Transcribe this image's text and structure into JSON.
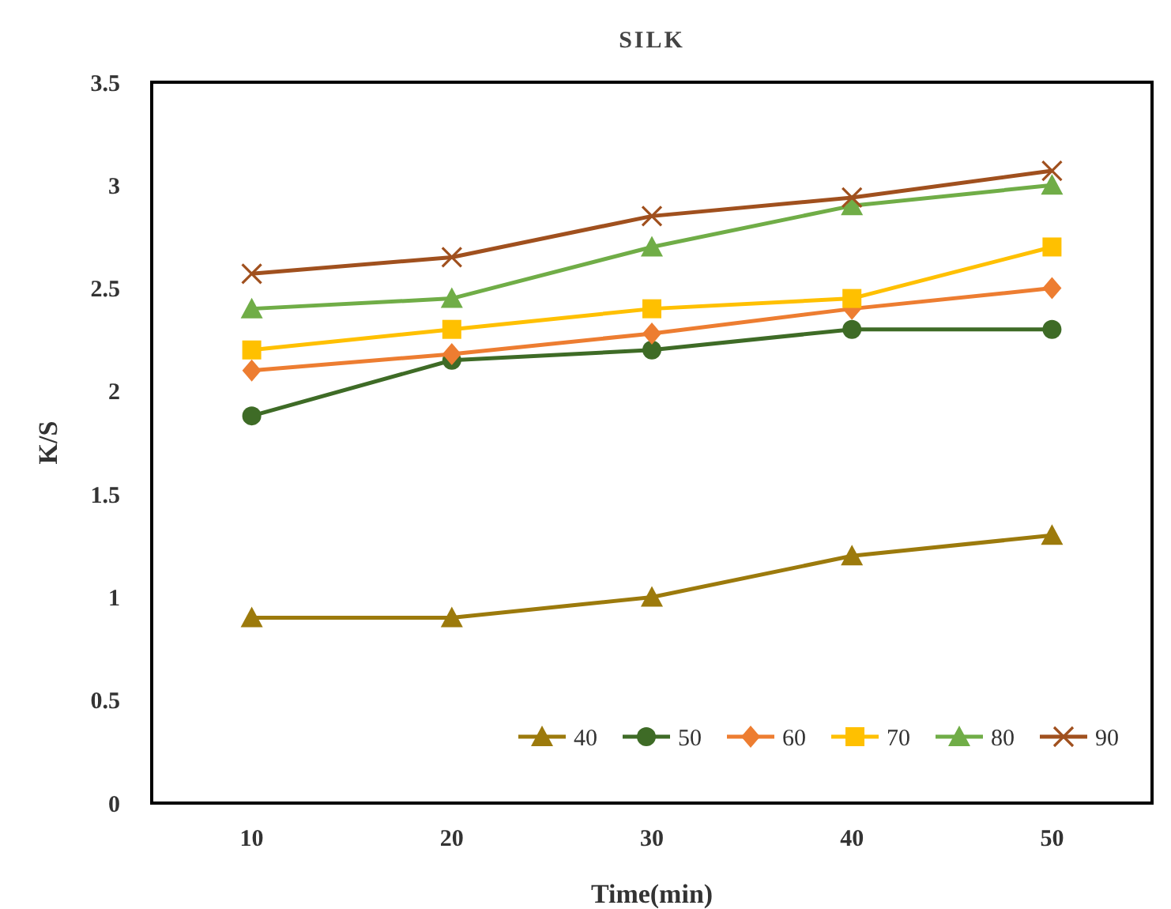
{
  "chart_data": {
    "type": "line",
    "title": "SILK",
    "xlabel": "Time(min)",
    "ylabel": "K/S",
    "categories": [
      "10",
      "20",
      "30",
      "40",
      "50"
    ],
    "series": [
      {
        "name": "40",
        "color": "#9c7a0c",
        "marker": "triangle",
        "values": [
          0.9,
          0.9,
          1.0,
          1.2,
          1.3
        ]
      },
      {
        "name": "50",
        "color": "#3e6b26",
        "marker": "circle",
        "values": [
          1.88,
          2.15,
          2.2,
          2.3,
          2.3
        ]
      },
      {
        "name": "60",
        "color": "#ed7d31",
        "marker": "diamond",
        "values": [
          2.1,
          2.18,
          2.28,
          2.4,
          2.5
        ]
      },
      {
        "name": "70",
        "color": "#ffc000",
        "marker": "square",
        "values": [
          2.2,
          2.3,
          2.4,
          2.45,
          2.7
        ]
      },
      {
        "name": "80",
        "color": "#70ad47",
        "marker": "triangle",
        "values": [
          2.4,
          2.45,
          2.7,
          2.9,
          3.0
        ]
      },
      {
        "name": "90",
        "color": "#a0501e",
        "marker": "cross",
        "values": [
          2.57,
          2.65,
          2.85,
          2.94,
          3.07
        ]
      }
    ],
    "ylim": [
      0,
      3.5
    ],
    "yticks": [
      0,
      0.5,
      1,
      1.5,
      2,
      2.5,
      3,
      3.5
    ],
    "legend": "bottom right",
    "grid": false
  }
}
